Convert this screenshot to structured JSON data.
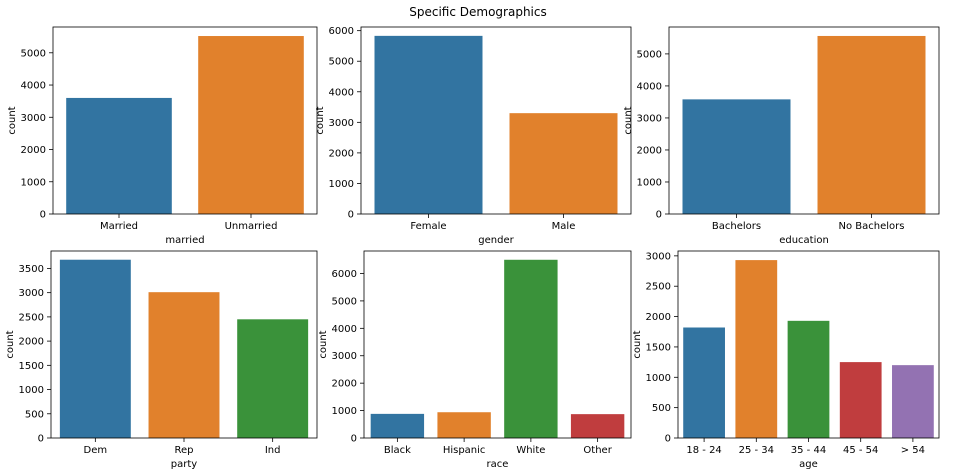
{
  "title": "Specific Demographics",
  "colors": [
    "#3274a1",
    "#e1812c",
    "#3a923a",
    "#c03d3e",
    "#9372b2"
  ],
  "chart_data": [
    {
      "type": "bar",
      "xlabel": "married",
      "ylabel": "count",
      "categories": [
        "Married",
        "Unmarried"
      ],
      "values": [
        3600,
        5520
      ],
      "ylim": [
        0,
        5800
      ],
      "yticks": [
        0,
        1000,
        2000,
        3000,
        4000,
        5000
      ]
    },
    {
      "type": "bar",
      "xlabel": "gender",
      "ylabel": "count",
      "categories": [
        "Female",
        "Male"
      ],
      "values": [
        5830,
        3300
      ],
      "ylim": [
        0,
        6120
      ],
      "yticks": [
        0,
        1000,
        2000,
        3000,
        4000,
        5000,
        6000
      ]
    },
    {
      "type": "bar",
      "xlabel": "education",
      "ylabel": "count",
      "categories": [
        "Bachelors",
        "No Bachelors"
      ],
      "values": [
        3580,
        5560
      ],
      "ylim": [
        0,
        5840
      ],
      "yticks": [
        0,
        1000,
        2000,
        3000,
        4000,
        5000
      ]
    },
    {
      "type": "bar",
      "xlabel": "party",
      "ylabel": "count",
      "categories": [
        "Dem",
        "Rep",
        "Ind"
      ],
      "values": [
        3680,
        3010,
        2450
      ],
      "ylim": [
        0,
        3860
      ],
      "yticks": [
        0,
        500,
        1000,
        1500,
        2000,
        2500,
        3000,
        3500
      ]
    },
    {
      "type": "bar",
      "xlabel": "race",
      "ylabel": "count",
      "categories": [
        "Black",
        "Hispanic",
        "White",
        "Other"
      ],
      "values": [
        880,
        940,
        6500,
        870
      ],
      "ylim": [
        0,
        6820
      ],
      "yticks": [
        0,
        1000,
        2000,
        3000,
        4000,
        5000,
        6000
      ]
    },
    {
      "type": "bar",
      "xlabel": "age",
      "ylabel": "count",
      "categories": [
        "18 - 24",
        "25 - 34",
        "35 - 44",
        "45 - 54",
        "> 54"
      ],
      "values": [
        1820,
        2930,
        1930,
        1250,
        1200
      ],
      "ylim": [
        0,
        3080
      ],
      "yticks": [
        0,
        500,
        1000,
        1500,
        2000,
        2500,
        3000
      ]
    }
  ]
}
